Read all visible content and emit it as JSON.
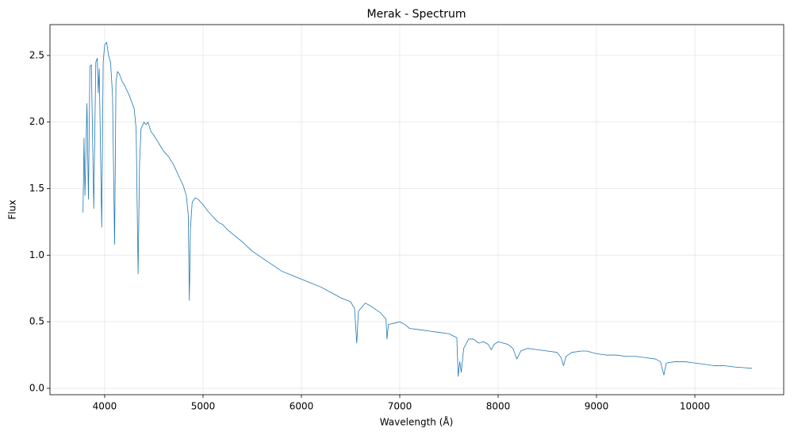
{
  "chart_data": {
    "type": "line",
    "title": "Merak - Spectrum",
    "x_label": "Wavelength (Å)",
    "y_label": "Flux",
    "color": "#1f77b4",
    "grid": true,
    "xlim": [
      3444,
      10903
    ],
    "ylim": [
      -0.048,
      2.732
    ],
    "xticks": [
      4000,
      5000,
      6000,
      7000,
      8000,
      9000,
      10000
    ],
    "yticks": [
      {
        "value": 0,
        "label": "0.0"
      },
      {
        "value": 0.5,
        "label": "0.5"
      },
      {
        "value": 1,
        "label": "1.0"
      },
      {
        "value": 1.5,
        "label": "1.5"
      },
      {
        "value": 2,
        "label": "2.0"
      },
      {
        "value": 2.5,
        "label": "2.5"
      }
    ],
    "x": [
      3780,
      3790,
      3800,
      3820,
      3835,
      3850,
      3865,
      3889,
      3910,
      3925,
      3935,
      3945,
      3970,
      3985,
      4000,
      4020,
      4040,
      4060,
      4080,
      4101,
      4115,
      4130,
      4150,
      4180,
      4200,
      4250,
      4300,
      4320,
      4340,
      4355,
      4370,
      4400,
      4420,
      4440,
      4470,
      4500,
      4550,
      4600,
      4650,
      4700,
      4750,
      4800,
      4830,
      4850,
      4861,
      4872,
      4890,
      4920,
      4950,
      5000,
      5050,
      5100,
      5150,
      5200,
      5250,
      5300,
      5400,
      5500,
      5600,
      5700,
      5800,
      5900,
      6000,
      6100,
      6200,
      6300,
      6400,
      6500,
      6540,
      6563,
      6580,
      6650,
      6700,
      6800,
      6860,
      6870,
      6885,
      6950,
      7000,
      7050,
      7100,
      7200,
      7300,
      7400,
      7500,
      7580,
      7594,
      7610,
      7625,
      7650,
      7700,
      7750,
      7800,
      7850,
      7900,
      7930,
      7960,
      8000,
      8050,
      8100,
      8150,
      8190,
      8230,
      8300,
      8400,
      8500,
      8600,
      8640,
      8665,
      8690,
      8750,
      8850,
      8900,
      9000,
      9100,
      9200,
      9300,
      9400,
      9500,
      9600,
      9650,
      9685,
      9710,
      9800,
      9900,
      10000,
      10100,
      10200,
      10300,
      10400,
      10500,
      10580
    ],
    "values": [
      1.32,
      1.88,
      1.45,
      2.14,
      1.42,
      2.42,
      2.43,
      1.35,
      2.45,
      2.48,
      2.22,
      2.4,
      1.21,
      2.45,
      2.58,
      2.6,
      2.5,
      2.45,
      2.2,
      1.08,
      2.3,
      2.38,
      2.36,
      2.3,
      2.28,
      2.2,
      2.1,
      1.95,
      0.86,
      1.7,
      1.95,
      2.0,
      1.98,
      2.0,
      1.93,
      1.9,
      1.84,
      1.78,
      1.74,
      1.68,
      1.6,
      1.52,
      1.45,
      1.3,
      0.66,
      1.2,
      1.4,
      1.43,
      1.42,
      1.38,
      1.33,
      1.29,
      1.25,
      1.23,
      1.19,
      1.16,
      1.1,
      1.03,
      0.98,
      0.93,
      0.88,
      0.85,
      0.82,
      0.79,
      0.76,
      0.72,
      0.68,
      0.65,
      0.6,
      0.34,
      0.58,
      0.64,
      0.62,
      0.57,
      0.52,
      0.37,
      0.48,
      0.49,
      0.5,
      0.48,
      0.45,
      0.44,
      0.43,
      0.42,
      0.41,
      0.38,
      0.09,
      0.2,
      0.12,
      0.3,
      0.37,
      0.37,
      0.34,
      0.35,
      0.33,
      0.29,
      0.33,
      0.35,
      0.34,
      0.33,
      0.3,
      0.22,
      0.28,
      0.3,
      0.29,
      0.28,
      0.27,
      0.23,
      0.17,
      0.24,
      0.27,
      0.28,
      0.28,
      0.26,
      0.25,
      0.25,
      0.24,
      0.24,
      0.23,
      0.22,
      0.2,
      0.1,
      0.19,
      0.2,
      0.2,
      0.19,
      0.18,
      0.17,
      0.17,
      0.16,
      0.155,
      0.15
    ]
  }
}
